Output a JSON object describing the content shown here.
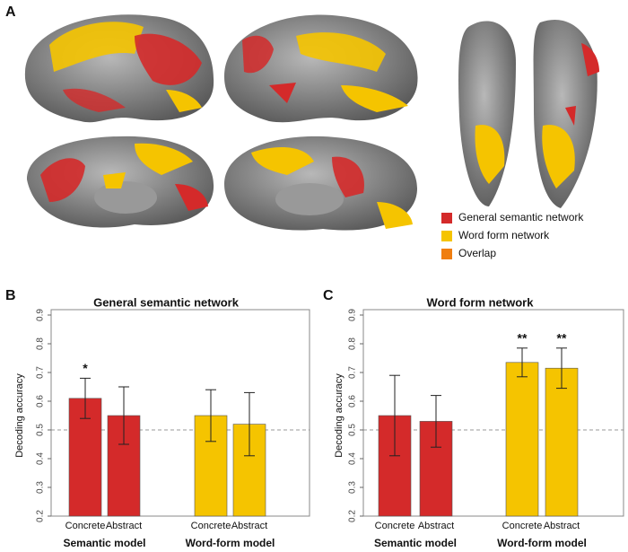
{
  "panel_labels": [
    "A",
    "B",
    "C"
  ],
  "legend": [
    {
      "name": "General semantic network",
      "color": "#d42a2a"
    },
    {
      "name": "Word form network",
      "color": "#f5c400"
    },
    {
      "name": "Overlap",
      "color": "#f07e10"
    }
  ],
  "chart_data": [
    {
      "type": "bar",
      "title": "General semantic network",
      "y_label": "Decoding accuracy",
      "categories": [
        "Concrete",
        "Abstract",
        "Concrete",
        "Abstract"
      ],
      "groups": [
        "Semantic model",
        "Word-form model"
      ],
      "values": [
        0.61,
        0.55,
        0.55,
        0.52
      ],
      "errors": [
        0.07,
        0.1,
        0.09,
        0.11
      ],
      "colors": [
        "#d42a2a",
        "#d42a2a",
        "#f5c400",
        "#f5c400"
      ],
      "value_annotations": [
        "*",
        null,
        null,
        null
      ],
      "reference_line": 0.5,
      "ylim": [
        0.2,
        0.9
      ],
      "yticks": [
        0.2,
        0.3,
        0.4,
        0.5,
        0.6,
        0.7,
        0.8,
        0.9
      ]
    },
    {
      "type": "bar",
      "title": "Word form network",
      "y_label": "Decoding accuracy",
      "categories": [
        "Concrete",
        "Abstract",
        "Concrete",
        "Abstract"
      ],
      "groups": [
        "Semantic model",
        "Word-form model"
      ],
      "values": [
        0.55,
        0.53,
        0.735,
        0.715
      ],
      "errors": [
        0.14,
        0.09,
        0.05,
        0.07
      ],
      "colors": [
        "#d42a2a",
        "#d42a2a",
        "#f5c400",
        "#f5c400"
      ],
      "value_annotations": [
        null,
        null,
        "**",
        "**"
      ],
      "reference_line": 0.5,
      "ylim": [
        0.2,
        0.9
      ],
      "yticks": [
        0.2,
        0.3,
        0.4,
        0.5,
        0.6,
        0.7,
        0.8,
        0.9
      ]
    }
  ]
}
